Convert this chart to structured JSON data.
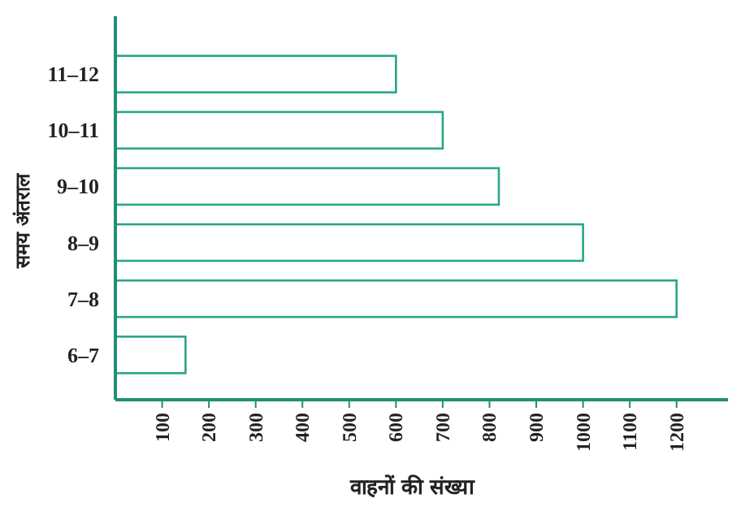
{
  "chart_data": {
    "type": "bar",
    "orientation": "horizontal",
    "xlabel": "वाहनों की संख्या",
    "ylabel": "समय अंतराल",
    "categories": [
      "11–12",
      "10–11",
      "9–10",
      "8–9",
      "7–8",
      "6–7"
    ],
    "values": [
      600,
      700,
      820,
      1000,
      1200,
      150
    ],
    "color": "#2aa58a",
    "xlim": [
      0,
      1310
    ],
    "xticks": [
      100,
      200,
      300,
      400,
      500,
      600,
      700,
      800,
      900,
      1000,
      1100,
      1200
    ],
    "grid": false
  }
}
